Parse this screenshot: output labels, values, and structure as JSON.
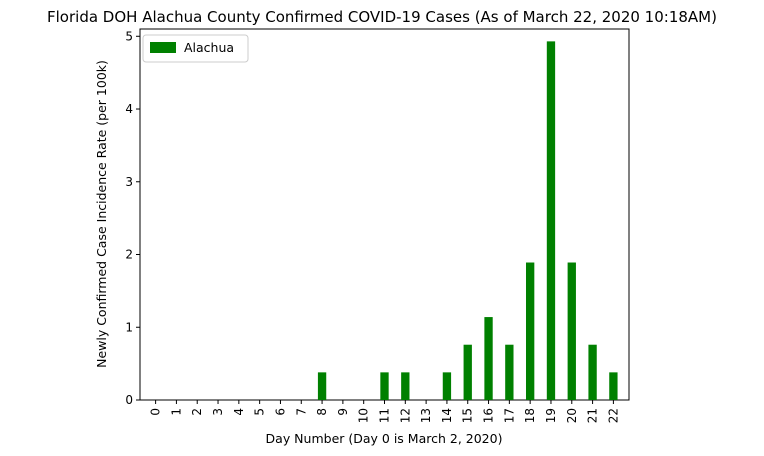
{
  "chart_data": {
    "type": "bar",
    "title": "Florida DOH Alachua County Confirmed COVID-19 Cases (As of March 22, 2020 10:18AM)",
    "xlabel": "Day Number (Day 0 is March 2, 2020)",
    "ylabel": "Newly Confirmed Case Incidence Rate (per 100k)",
    "categories": [
      "0",
      "1",
      "2",
      "3",
      "4",
      "5",
      "6",
      "7",
      "8",
      "9",
      "10",
      "11",
      "12",
      "13",
      "14",
      "15",
      "16",
      "17",
      "18",
      "19",
      "20",
      "21",
      "22"
    ],
    "series": [
      {
        "name": "Alachua",
        "color": "#008000",
        "values": [
          0,
          0,
          0,
          0,
          0,
          0,
          0,
          0,
          0.38,
          0,
          0,
          0.38,
          0.38,
          0,
          0.38,
          0.76,
          1.14,
          0.76,
          1.89,
          4.93,
          1.89,
          0.76,
          0.38
        ]
      }
    ],
    "ylim": [
      0,
      5.1
    ],
    "yticks": [
      0,
      1,
      2,
      3,
      4,
      5
    ],
    "legend": "top-left",
    "grid": false
  }
}
